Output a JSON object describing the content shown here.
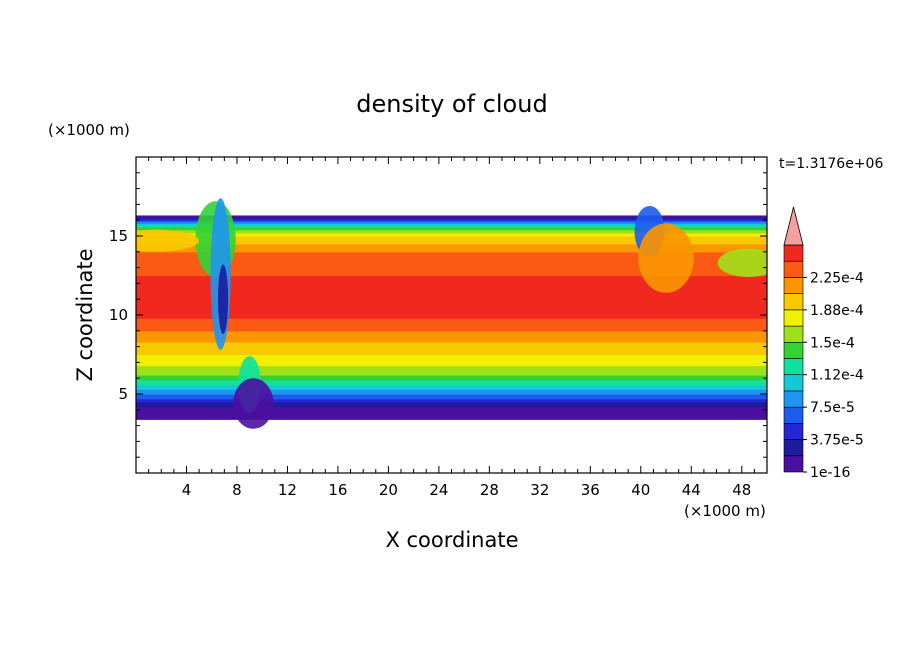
{
  "chart_data": {
    "type": "heatmap",
    "title": "density of cloud",
    "xlabel": "X coordinate",
    "ylabel": "Z coordinate",
    "x_unit": "(×1000 m)",
    "y_unit": "(×1000 m)",
    "time_label": "t=1.3176e+06",
    "xlim": [
      0,
      50
    ],
    "ylim": [
      0,
      20
    ],
    "x_ticks": [
      4,
      8,
      12,
      16,
      20,
      24,
      28,
      32,
      36,
      40,
      44,
      48
    ],
    "y_ticks": [
      5,
      10,
      15
    ],
    "colorbar": {
      "labels": [
        "1e-16",
        "3.75e-5",
        "7.5e-5",
        "1.12e-4",
        "1.5e-4",
        "1.88e-4",
        "2.25e-4"
      ],
      "label_values": [
        0,
        3.75e-05,
        7.5e-05,
        0.000112,
        0.00015,
        0.000188,
        0.000225
      ],
      "levels": [
        0,
        1.875e-05,
        3.75e-05,
        5.625e-05,
        7.5e-05,
        9.375e-05,
        0.000112,
        0.000131,
        0.00015,
        0.000169,
        0.000188,
        0.000206,
        0.000225,
        0.000244
      ],
      "colors": [
        "#4b0fa0",
        "#1c1c9c",
        "#2626d6",
        "#1e5cf0",
        "#1e96f0",
        "#15c8d8",
        "#10e0a0",
        "#34d234",
        "#a0e018",
        "#f0f000",
        "#f8c800",
        "#fa9600",
        "#fa5a14",
        "#f0281e"
      ],
      "overflow_color": "#f4a0a0"
    },
    "vertical_profile": {
      "z": [
        3.4,
        4.2,
        5.0,
        5.6,
        6.2,
        6.8,
        7.5,
        8.3,
        9.0,
        9.8,
        12.5,
        14.0,
        15.0,
        15.6,
        16.0,
        16.3
      ],
      "value": [
        1e-16,
        1.875e-05,
        7.5e-05,
        0.000112,
        0.00015,
        0.000169,
        0.000188,
        0.000206,
        0.000225,
        0.000244,
        0.000244,
        0.000225,
        0.000188,
        0.000131,
        5.625e-05,
        1e-16
      ]
    },
    "cloud_base_km": 3.4,
    "cloud_top_km": 16.3
  }
}
